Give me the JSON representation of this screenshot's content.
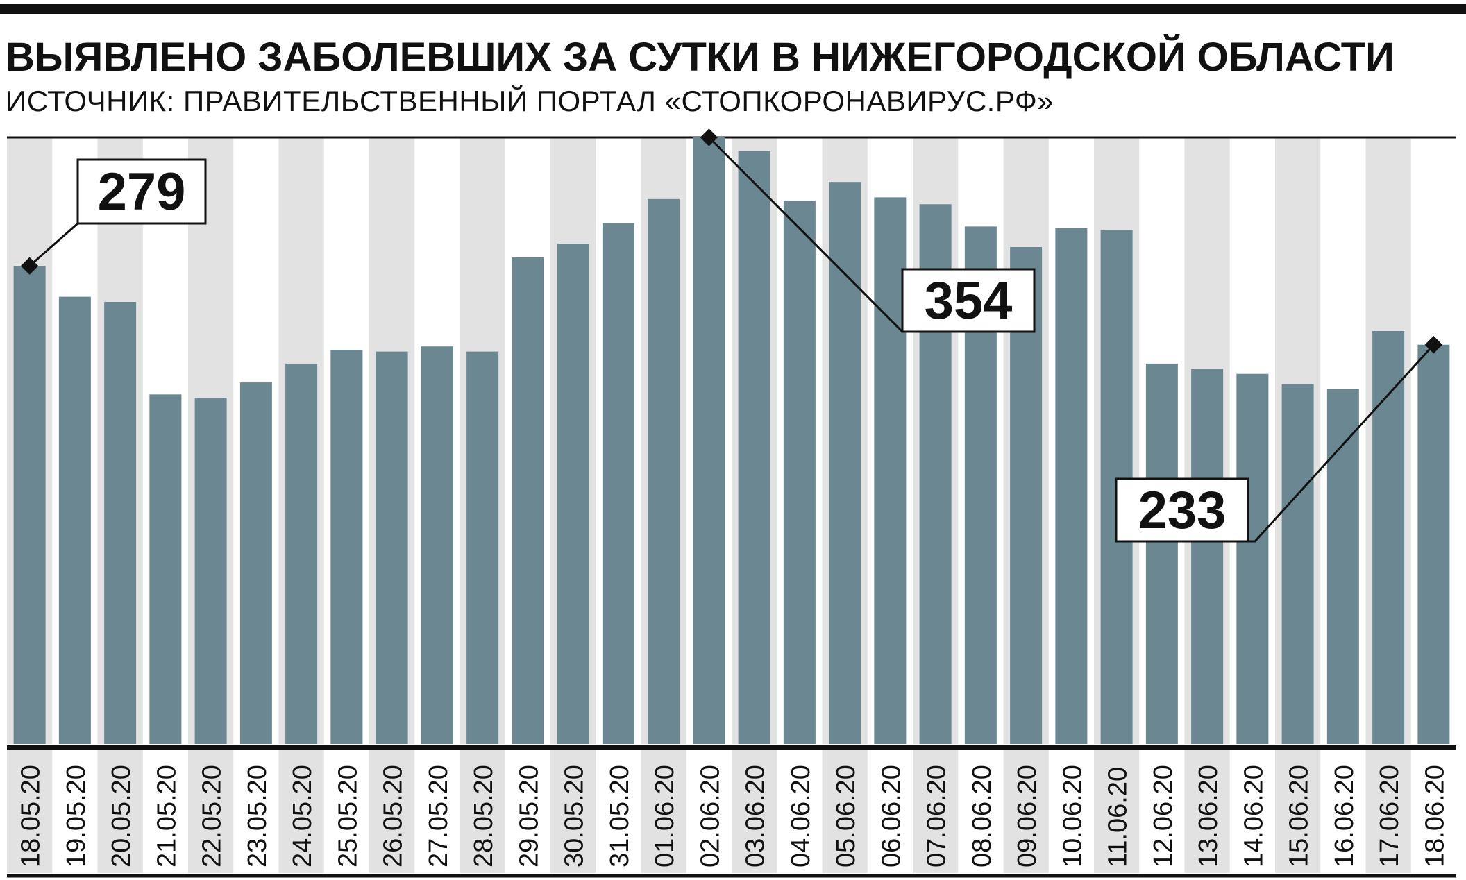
{
  "header": {
    "title_regular": "ВЫЯВЛЕНО ЗАБОЛЕВШИХ ЗА СУТКИ В ",
    "title_bold": "НИЖЕГОРОДСКОЙ ОБЛАСТИ",
    "subtitle": "ИСТОЧНИК: ПРАВИТЕЛЬСТВЕННЫЙ ПОРТАЛ «СТОПКОРОНАВИРУС.РФ»"
  },
  "colors": {
    "bar": "#6b8792",
    "stripe": "#e2e2e2",
    "rule": "#111111",
    "label_box": "#ffffff"
  },
  "chart_data": {
    "type": "bar",
    "title": "ВЫЯВЛЕНО ЗАБОЛЕВШИХ ЗА СУТКИ В НИЖЕГОРОДСКОЙ ОБЛАСТИ",
    "xlabel": "",
    "ylabel": "",
    "ylim": [
      0,
      354
    ],
    "grid": false,
    "categories": [
      "18.05.20",
      "19.05.20",
      "20.05.20",
      "21.05.20",
      "22.05.20",
      "23.05.20",
      "24.05.20",
      "25.05.20",
      "26.05.20",
      "27.05.20",
      "28.05.20",
      "29.05.20",
      "30.05.20",
      "31.05.20",
      "01.06.20",
      "02.06.20",
      "03.06.20",
      "04.06.20",
      "05.06.20",
      "06.06.20",
      "07.06.20",
      "08.06.20",
      "09.06.20",
      "10.06.20",
      "11.06.20",
      "12.06.20",
      "13.06.20",
      "14.06.20",
      "15.06.20",
      "16.06.20",
      "17.06.20",
      "18.06.20"
    ],
    "values": [
      279,
      261,
      258,
      204,
      202,
      211,
      222,
      230,
      229,
      232,
      229,
      284,
      292,
      304,
      318,
      354,
      346,
      317,
      328,
      319,
      315,
      302,
      290,
      301,
      300,
      222,
      219,
      216,
      210,
      207,
      241,
      233
    ],
    "annotations": [
      {
        "index": 0,
        "label": "279"
      },
      {
        "index": 15,
        "label": "354"
      },
      {
        "index": 31,
        "label": "233"
      }
    ]
  }
}
